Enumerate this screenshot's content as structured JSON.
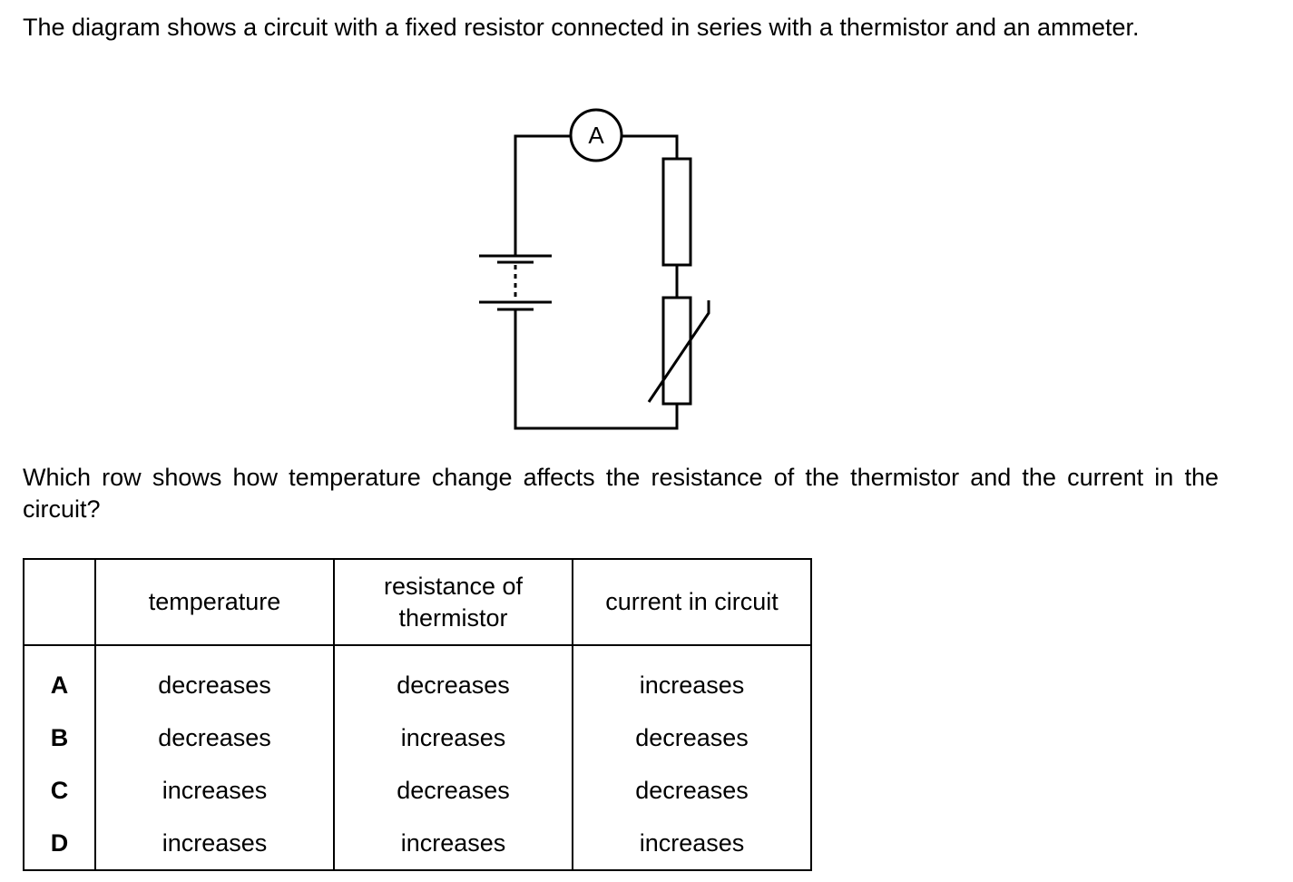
{
  "intro": "The diagram shows a circuit with a fixed resistor connected in series with a thermistor and an ammeter.",
  "diagram": {
    "ammeter_label": "A"
  },
  "question": "Which row shows how temperature change affects the resistance of the thermistor and the current in the circuit?",
  "table": {
    "headers": [
      "",
      "temperature",
      "resistance of thermistor",
      "current in circuit"
    ],
    "rows": [
      {
        "label": "A",
        "cells": [
          "decreases",
          "decreases",
          "increases"
        ]
      },
      {
        "label": "B",
        "cells": [
          "decreases",
          "increases",
          "decreases"
        ]
      },
      {
        "label": "C",
        "cells": [
          "increases",
          "decreases",
          "decreases"
        ]
      },
      {
        "label": "D",
        "cells": [
          "increases",
          "increases",
          "increases"
        ]
      }
    ]
  }
}
